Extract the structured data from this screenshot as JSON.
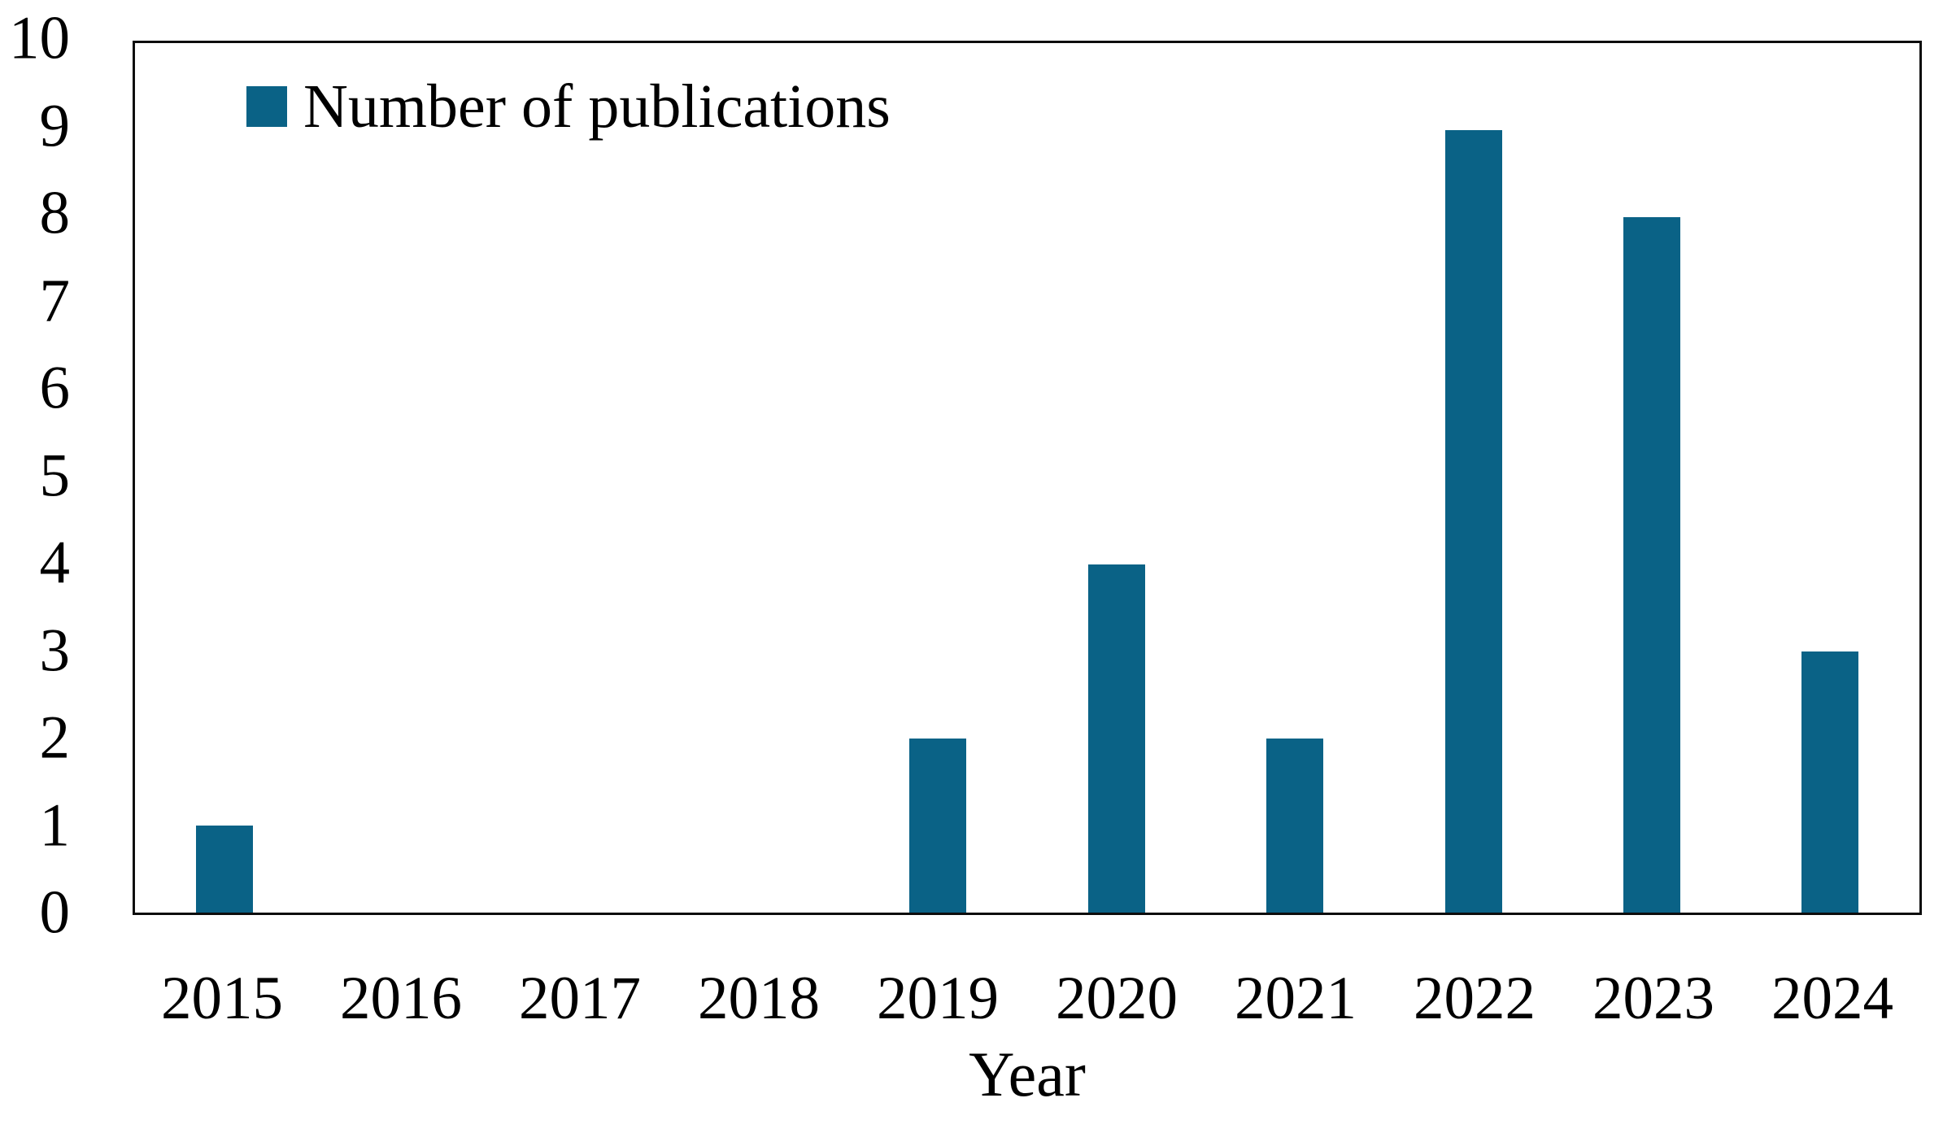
{
  "figure": {
    "background_color": "#ffffff",
    "axis_color": "#0d0d0d",
    "text_color": "#000000"
  },
  "legend": {
    "label": "Number of publications",
    "swatch_color": "#0a6286",
    "position": "top-left"
  },
  "chart_data": {
    "type": "bar",
    "title": "",
    "xlabel": "Year",
    "ylabel": "",
    "categories": [
      "2015",
      "2016",
      "2017",
      "2018",
      "2019",
      "2020",
      "2021",
      "2022",
      "2023",
      "2024"
    ],
    "series": [
      {
        "name": "Number of publications",
        "values": [
          1,
          0,
          0,
          0,
          2,
          4,
          2,
          9,
          8,
          3
        ]
      }
    ],
    "ylim": [
      0,
      10
    ],
    "yticks": [
      0,
      1,
      2,
      3,
      4,
      5,
      6,
      7,
      8,
      9,
      10
    ],
    "grid": false,
    "legend_position": "top-left",
    "bar_color": "#0a6286"
  }
}
